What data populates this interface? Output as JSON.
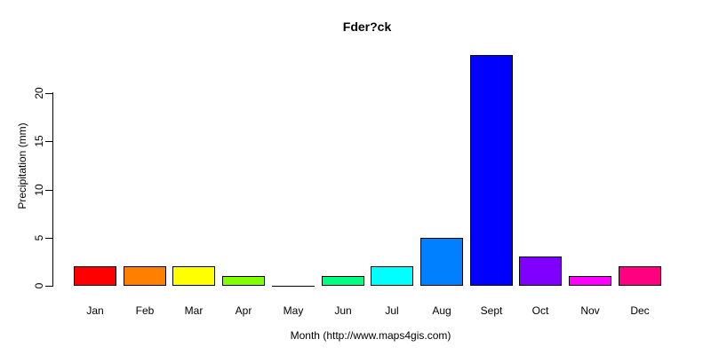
{
  "title": "Fder?ck",
  "chart_data": {
    "type": "bar",
    "title": "Fder?ck",
    "xlabel": "Month (http://www.maps4gis.com)",
    "ylabel": "Precipitation (mm)",
    "categories": [
      "Jan",
      "Feb",
      "Mar",
      "Apr",
      "May",
      "Jun",
      "Jul",
      "Aug",
      "Sept",
      "Oct",
      "Nov",
      "Dec"
    ],
    "values": [
      2,
      2,
      2,
      1,
      0,
      1,
      2,
      5,
      24,
      3,
      1,
      2
    ],
    "bar_colors": [
      "#FF0000",
      "#FF8000",
      "#FFFF00",
      "#80FF00",
      "#00FF00",
      "#00FF80",
      "#00FFFF",
      "#0080FF",
      "#0000FF",
      "#8000FF",
      "#FF00FF",
      "#FF0080"
    ],
    "y_ticks": [
      0,
      5,
      10,
      15,
      20
    ],
    "ylim": [
      0,
      24
    ],
    "grid": false,
    "legend": false,
    "bar_border_color": "#000000",
    "background_color": "#FFFFFF"
  }
}
